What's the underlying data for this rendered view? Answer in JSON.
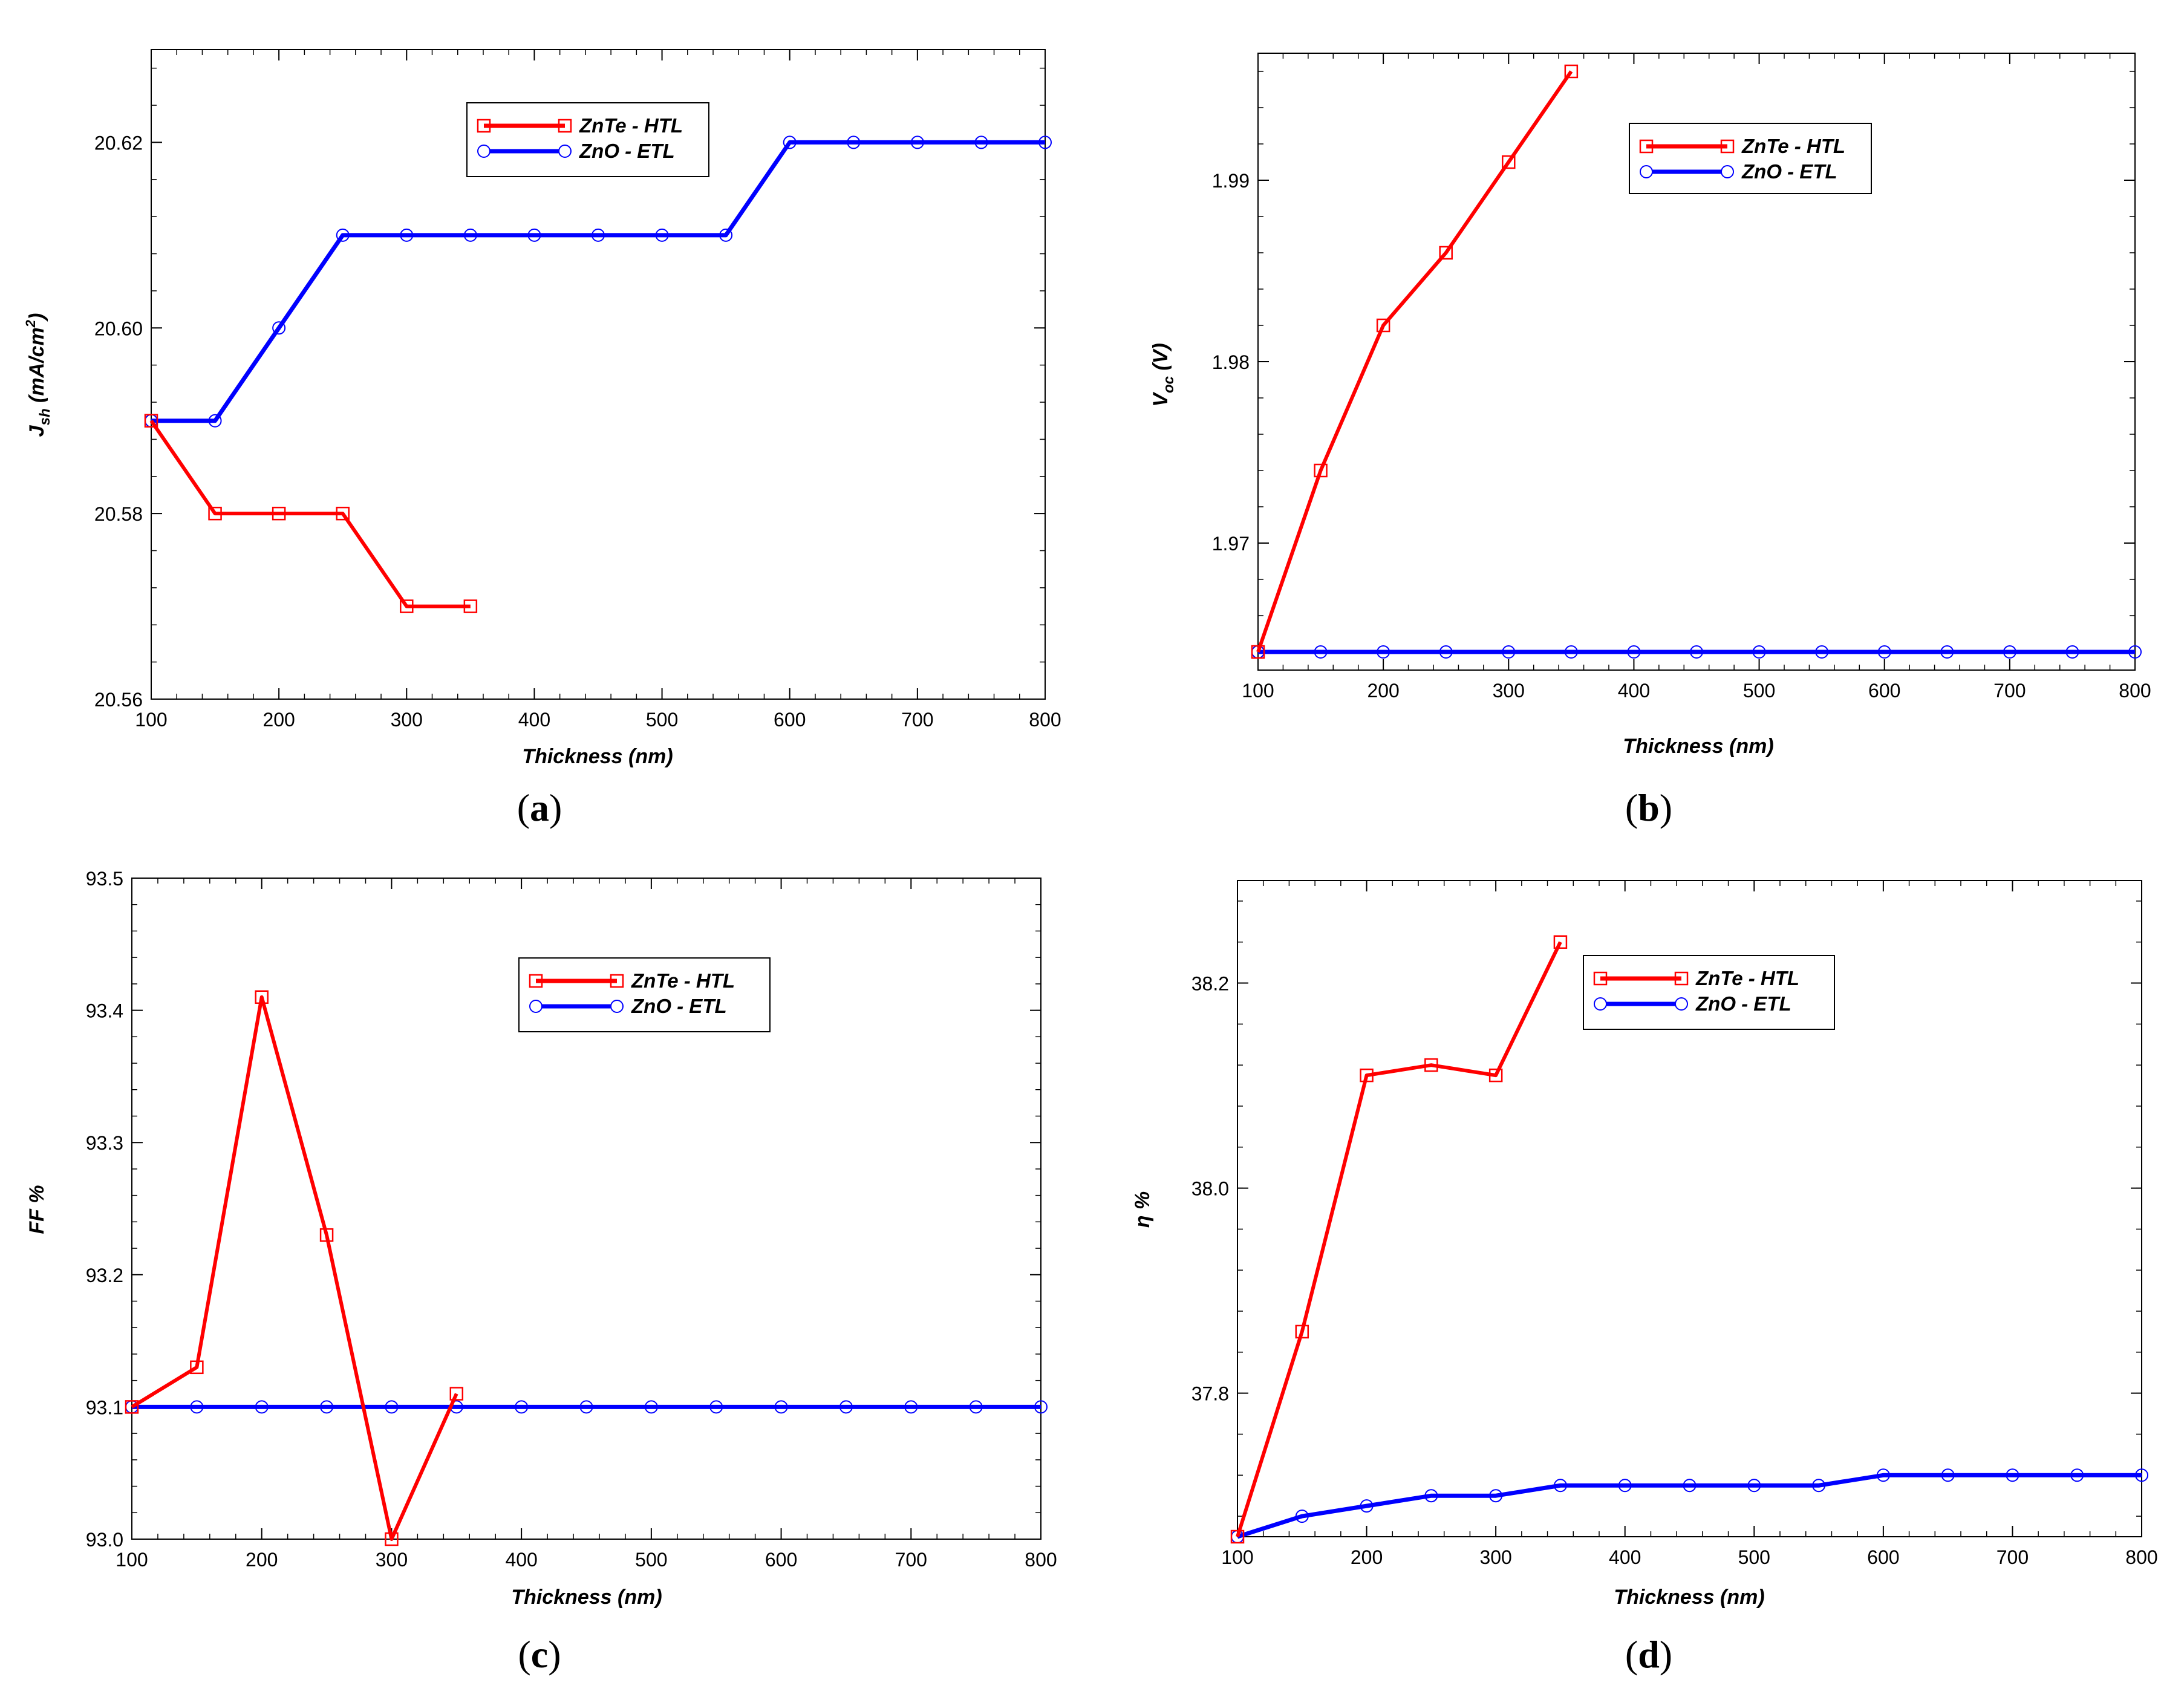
{
  "chart_data": [
    {
      "type": "line",
      "panel_label": "a",
      "xlabel": "Thickness (nm)",
      "ylabel_main": "J",
      "ylabel_sub": "sh",
      "ylabel_rest": " (mA/cm",
      "ylabel_sup": "2",
      "ylabel_end": ")",
      "xlim": [
        100,
        800
      ],
      "ylim": [
        20.56,
        20.63
      ],
      "xticks": [
        100,
        200,
        300,
        400,
        500,
        600,
        700,
        800
      ],
      "yticks": [
        20.56,
        20.58,
        20.6,
        20.62
      ],
      "ytick_labels": [
        "20.56",
        "20.58",
        "20.60",
        "20.62"
      ],
      "legend_position": "top-center",
      "series": [
        {
          "name": "ZnTe - HTL",
          "color": "#ff0000",
          "marker": "square",
          "x": [
            100,
            150,
            200,
            250,
            300,
            350
          ],
          "y": [
            20.59,
            20.58,
            20.58,
            20.58,
            20.57,
            20.57
          ]
        },
        {
          "name": "ZnO - ETL",
          "color": "#0000ff",
          "marker": "circle",
          "x": [
            100,
            150,
            200,
            250,
            300,
            350,
            400,
            450,
            500,
            550,
            600,
            650,
            700,
            750,
            800
          ],
          "y": [
            20.59,
            20.59,
            20.6,
            20.61,
            20.61,
            20.61,
            20.61,
            20.61,
            20.61,
            20.61,
            20.62,
            20.62,
            20.62,
            20.62,
            20.62
          ]
        }
      ]
    },
    {
      "type": "line",
      "panel_label": "b",
      "xlabel": "Thickness (nm)",
      "ylabel_main": "V",
      "ylabel_sub": "oc",
      "ylabel_rest": " (V)",
      "ylabel_sup": "",
      "ylabel_end": "",
      "xlim": [
        100,
        800
      ],
      "ylim": [
        1.963,
        1.997
      ],
      "xticks": [
        100,
        200,
        300,
        400,
        500,
        600,
        700,
        800
      ],
      "yticks": [
        1.97,
        1.98,
        1.99
      ],
      "ytick_labels": [
        "1.97",
        "1.98",
        "1.99"
      ],
      "legend_position": "top-right",
      "series": [
        {
          "name": "ZnTe - HTL",
          "color": "#ff0000",
          "marker": "square",
          "x": [
            100,
            150,
            200,
            250,
            300,
            350
          ],
          "y": [
            1.964,
            1.974,
            1.982,
            1.986,
            1.991,
            1.996
          ]
        },
        {
          "name": "ZnO - ETL",
          "color": "#0000ff",
          "marker": "circle",
          "x": [
            100,
            150,
            200,
            250,
            300,
            350,
            400,
            450,
            500,
            550,
            600,
            650,
            700,
            750,
            800
          ],
          "y": [
            1.964,
            1.964,
            1.964,
            1.964,
            1.964,
            1.964,
            1.964,
            1.964,
            1.964,
            1.964,
            1.964,
            1.964,
            1.964,
            1.964,
            1.964
          ]
        }
      ]
    },
    {
      "type": "line",
      "panel_label": "c",
      "xlabel": "Thickness (nm)",
      "ylabel_main": "FF %",
      "ylabel_sub": "",
      "ylabel_rest": "",
      "ylabel_sup": "",
      "ylabel_end": "",
      "xlim": [
        100,
        800
      ],
      "ylim": [
        93.0,
        93.5
      ],
      "xticks": [
        100,
        200,
        300,
        400,
        500,
        600,
        700,
        800
      ],
      "yticks": [
        93.0,
        93.1,
        93.2,
        93.3,
        93.4,
        93.5
      ],
      "ytick_labels": [
        "93.0",
        "93.1",
        "93.2",
        "93.3",
        "93.4",
        "93.5"
      ],
      "legend_position": "top-center",
      "series": [
        {
          "name": "ZnTe - HTL",
          "color": "#ff0000",
          "marker": "square",
          "x": [
            100,
            150,
            200,
            250,
            300,
            350
          ],
          "y": [
            93.1,
            93.13,
            93.41,
            93.23,
            93.0,
            93.11
          ]
        },
        {
          "name": "ZnO - ETL",
          "color": "#0000ff",
          "marker": "circle",
          "x": [
            100,
            150,
            200,
            250,
            300,
            350,
            400,
            450,
            500,
            550,
            600,
            650,
            700,
            750,
            800
          ],
          "y": [
            93.1,
            93.1,
            93.1,
            93.1,
            93.1,
            93.1,
            93.1,
            93.1,
            93.1,
            93.1,
            93.1,
            93.1,
            93.1,
            93.1,
            93.1
          ]
        }
      ]
    },
    {
      "type": "line",
      "panel_label": "d",
      "xlabel": "Thickness (nm)",
      "ylabel_main": "η %",
      "ylabel_sub": "",
      "ylabel_rest": "",
      "ylabel_sup": "",
      "ylabel_end": "",
      "xlim": [
        100,
        800
      ],
      "ylim": [
        37.66,
        38.3
      ],
      "xticks": [
        100,
        200,
        300,
        400,
        500,
        600,
        700,
        800
      ],
      "yticks": [
        37.8,
        38.0,
        38.2
      ],
      "ytick_labels": [
        "37.8",
        "38.0",
        "38.2"
      ],
      "legend_position": "top-right",
      "series": [
        {
          "name": "ZnTe - HTL",
          "color": "#ff0000",
          "marker": "square",
          "x": [
            100,
            150,
            200,
            250,
            300,
            350
          ],
          "y": [
            37.66,
            37.86,
            38.11,
            38.12,
            38.11,
            38.24
          ]
        },
        {
          "name": "ZnO - ETL",
          "color": "#0000ff",
          "marker": "circle",
          "x": [
            100,
            150,
            200,
            250,
            300,
            350,
            400,
            450,
            500,
            550,
            600,
            650,
            700,
            750,
            800
          ],
          "y": [
            37.66,
            37.68,
            37.69,
            37.7,
            37.7,
            37.71,
            37.71,
            37.71,
            37.71,
            37.71,
            37.72,
            37.72,
            37.72,
            37.72,
            37.72
          ]
        }
      ]
    }
  ]
}
